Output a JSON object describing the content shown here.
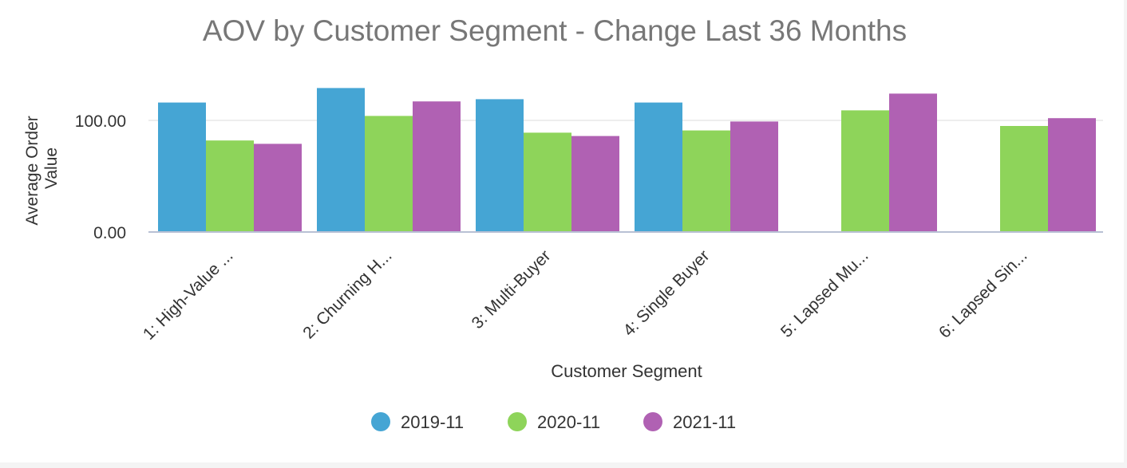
{
  "chart_data": {
    "type": "bar",
    "title": "AOV by Customer Segment - Change Last 36 Months",
    "xlabel": "Customer Segment",
    "ylabel_lines": [
      "Average Order",
      "Value"
    ],
    "categories": [
      "1: High-Value ...",
      "2: Churning H...",
      "3: Multi-Buyer",
      "4: Single Buyer",
      "5: Lapsed Mu...",
      "6: Lapsed Sin..."
    ],
    "series": [
      {
        "name": "2019-11",
        "color": "#45a5d4",
        "values": [
          116,
          129,
          119,
          116,
          null,
          null
        ]
      },
      {
        "name": "2020-11",
        "color": "#8ed45a",
        "values": [
          82,
          104,
          89,
          91,
          109,
          95
        ]
      },
      {
        "name": "2021-11",
        "color": "#b061b3",
        "values": [
          79,
          117,
          86,
          99,
          124,
          102
        ]
      }
    ],
    "y_ticks": [
      {
        "value": 0,
        "label": "0.00"
      },
      {
        "value": 100,
        "label": "100.00"
      }
    ],
    "ylim": [
      0,
      132
    ],
    "grid": true,
    "legend_position": "bottom"
  }
}
